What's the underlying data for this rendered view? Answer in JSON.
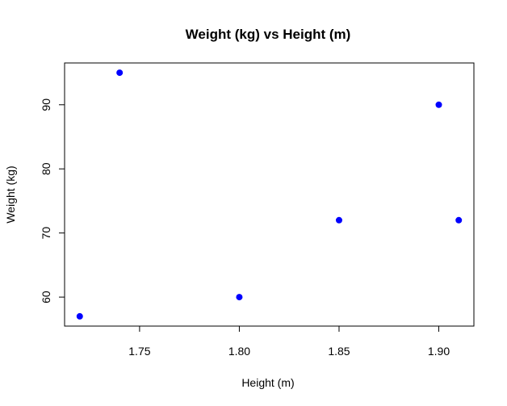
{
  "chart_data": {
    "type": "scatter",
    "title": "Weight (kg) vs Height (m)",
    "xlabel": "Height (m)",
    "ylabel": "Weight (kg)",
    "xlim": [
      1.7124,
      1.9176
    ],
    "ylim": [
      55.48,
      96.52
    ],
    "xticks": [
      "1.75",
      "1.80",
      "1.85",
      "1.90"
    ],
    "xtick_values": [
      1.75,
      1.8,
      1.85,
      1.9
    ],
    "yticks": [
      "60",
      "70",
      "80",
      "90"
    ],
    "ytick_values": [
      60,
      70,
      80,
      90
    ],
    "grid": false,
    "legend": "none",
    "point_color": "#0000ff",
    "points": [
      {
        "x": 1.72,
        "y": 57
      },
      {
        "x": 1.74,
        "y": 95
      },
      {
        "x": 1.8,
        "y": 60
      },
      {
        "x": 1.85,
        "y": 72
      },
      {
        "x": 1.9,
        "y": 90
      },
      {
        "x": 1.91,
        "y": 72
      }
    ]
  }
}
